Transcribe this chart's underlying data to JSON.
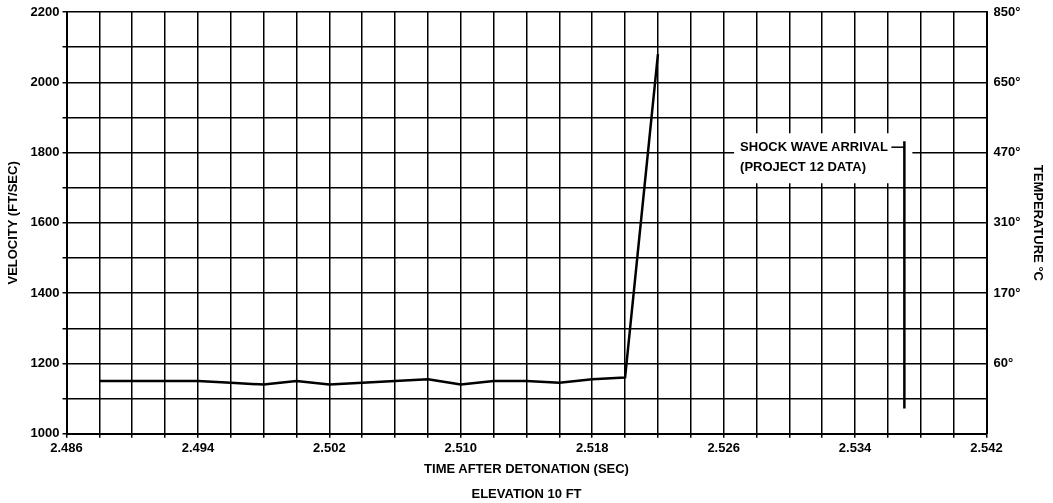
{
  "chart_data": {
    "type": "line",
    "xlabel": "TIME AFTER DETONATION (SEC)",
    "ylabel": "VELOCITY (FT/SEC)",
    "y2label": "TEMPERATURE °C",
    "annotations": [
      "ELEVATION 10 FT"
    ],
    "x": [
      2.488,
      2.49,
      2.492,
      2.494,
      2.496,
      2.498,
      2.5,
      2.502,
      2.504,
      2.506,
      2.508,
      2.51,
      2.512,
      2.514,
      2.516,
      2.518,
      2.52,
      2.522
    ],
    "series": [
      {
        "color": "#000000",
        "values": [
          1150,
          1150,
          1150,
          1150,
          1145,
          1140,
          1150,
          1140,
          1145,
          1150,
          1155,
          1140,
          1150,
          1150,
          1145,
          1155,
          1160,
          2080
        ]
      }
    ],
    "xlim": [
      2.486,
      2.542
    ],
    "xticks": [
      2.486,
      {
        "value": 2.488,
        "label": null
      },
      {
        "value": 2.49,
        "label": null
      },
      {
        "value": 2.492,
        "label": null
      },
      2.494,
      {
        "value": 2.496,
        "label": null
      },
      {
        "value": 2.498,
        "label": null
      },
      {
        "value": 2.5,
        "label": null
      },
      2.502,
      {
        "value": 2.504,
        "label": null
      },
      {
        "value": 2.506,
        "label": null
      },
      {
        "value": 2.508,
        "label": null
      },
      {
        "value": 2.51,
        "label": "2.510"
      },
      {
        "value": 2.512,
        "label": null
      },
      {
        "value": 2.514,
        "label": null
      },
      {
        "value": 2.516,
        "label": null
      },
      2.518,
      {
        "value": 2.52,
        "label": null
      },
      {
        "value": 2.522,
        "label": null
      },
      {
        "value": 2.524,
        "label": null
      },
      2.526,
      {
        "value": 2.528,
        "label": null
      },
      {
        "value": 2.53,
        "label": null
      },
      {
        "value": 2.532,
        "label": null
      },
      2.534,
      {
        "value": 2.536,
        "label": null
      },
      {
        "value": 2.538,
        "label": null
      },
      {
        "value": 2.54,
        "label": null
      },
      2.542
    ],
    "ylim": [
      1000,
      2200
    ],
    "yticks": [
      1000,
      {
        "value": 1100,
        "label": null
      },
      1200,
      {
        "value": 1300,
        "label": null
      },
      1400,
      {
        "value": 1500,
        "label": null
      },
      1600,
      {
        "value": 1700,
        "label": null
      },
      1800,
      {
        "value": 1900,
        "label": null
      },
      2000,
      {
        "value": 2100,
        "label": null
      },
      2200
    ],
    "y2_categories": [
      "850°",
      "650°",
      "470°",
      "310°",
      "170°",
      "60°",
      null
    ],
    "ref_lines": [
      {
        "axis": "x",
        "value": 2.537,
        "label": "SHOCK WAVE ARRIVAL\n(PROJECT 12 DATA)",
        "color": "#000000"
      }
    ],
    "grid": true,
    "legend": false,
    "marker": "none",
    "line_style": "solid"
  }
}
